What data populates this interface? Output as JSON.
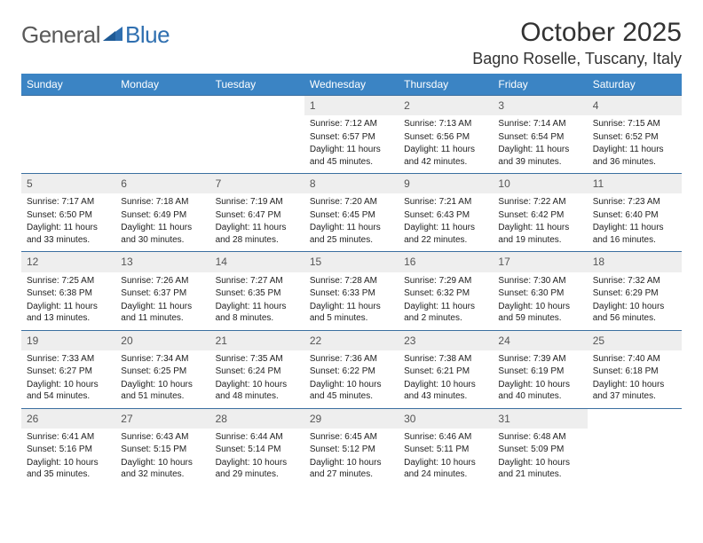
{
  "logo": {
    "textLeft": "General",
    "textRight": "Blue"
  },
  "title": "October 2025",
  "location": "Bagno Roselle, Tuscany, Italy",
  "colors": {
    "headerBg": "#3b84c4",
    "headerText": "#ffffff",
    "dayNumBg": "#eeeeee",
    "rowBorder": "#3b6fa0",
    "logoBlue": "#2f6fb0",
    "logoGray": "#5a5a5a"
  },
  "weekdays": [
    "Sunday",
    "Monday",
    "Tuesday",
    "Wednesday",
    "Thursday",
    "Friday",
    "Saturday"
  ],
  "weeks": [
    [
      {
        "n": "",
        "sr": "",
        "ss": "",
        "dl": ""
      },
      {
        "n": "",
        "sr": "",
        "ss": "",
        "dl": ""
      },
      {
        "n": "",
        "sr": "",
        "ss": "",
        "dl": ""
      },
      {
        "n": "1",
        "sr": "Sunrise: 7:12 AM",
        "ss": "Sunset: 6:57 PM",
        "dl": "Daylight: 11 hours and 45 minutes."
      },
      {
        "n": "2",
        "sr": "Sunrise: 7:13 AM",
        "ss": "Sunset: 6:56 PM",
        "dl": "Daylight: 11 hours and 42 minutes."
      },
      {
        "n": "3",
        "sr": "Sunrise: 7:14 AM",
        "ss": "Sunset: 6:54 PM",
        "dl": "Daylight: 11 hours and 39 minutes."
      },
      {
        "n": "4",
        "sr": "Sunrise: 7:15 AM",
        "ss": "Sunset: 6:52 PM",
        "dl": "Daylight: 11 hours and 36 minutes."
      }
    ],
    [
      {
        "n": "5",
        "sr": "Sunrise: 7:17 AM",
        "ss": "Sunset: 6:50 PM",
        "dl": "Daylight: 11 hours and 33 minutes."
      },
      {
        "n": "6",
        "sr": "Sunrise: 7:18 AM",
        "ss": "Sunset: 6:49 PM",
        "dl": "Daylight: 11 hours and 30 minutes."
      },
      {
        "n": "7",
        "sr": "Sunrise: 7:19 AM",
        "ss": "Sunset: 6:47 PM",
        "dl": "Daylight: 11 hours and 28 minutes."
      },
      {
        "n": "8",
        "sr": "Sunrise: 7:20 AM",
        "ss": "Sunset: 6:45 PM",
        "dl": "Daylight: 11 hours and 25 minutes."
      },
      {
        "n": "9",
        "sr": "Sunrise: 7:21 AM",
        "ss": "Sunset: 6:43 PM",
        "dl": "Daylight: 11 hours and 22 minutes."
      },
      {
        "n": "10",
        "sr": "Sunrise: 7:22 AM",
        "ss": "Sunset: 6:42 PM",
        "dl": "Daylight: 11 hours and 19 minutes."
      },
      {
        "n": "11",
        "sr": "Sunrise: 7:23 AM",
        "ss": "Sunset: 6:40 PM",
        "dl": "Daylight: 11 hours and 16 minutes."
      }
    ],
    [
      {
        "n": "12",
        "sr": "Sunrise: 7:25 AM",
        "ss": "Sunset: 6:38 PM",
        "dl": "Daylight: 11 hours and 13 minutes."
      },
      {
        "n": "13",
        "sr": "Sunrise: 7:26 AM",
        "ss": "Sunset: 6:37 PM",
        "dl": "Daylight: 11 hours and 11 minutes."
      },
      {
        "n": "14",
        "sr": "Sunrise: 7:27 AM",
        "ss": "Sunset: 6:35 PM",
        "dl": "Daylight: 11 hours and 8 minutes."
      },
      {
        "n": "15",
        "sr": "Sunrise: 7:28 AM",
        "ss": "Sunset: 6:33 PM",
        "dl": "Daylight: 11 hours and 5 minutes."
      },
      {
        "n": "16",
        "sr": "Sunrise: 7:29 AM",
        "ss": "Sunset: 6:32 PM",
        "dl": "Daylight: 11 hours and 2 minutes."
      },
      {
        "n": "17",
        "sr": "Sunrise: 7:30 AM",
        "ss": "Sunset: 6:30 PM",
        "dl": "Daylight: 10 hours and 59 minutes."
      },
      {
        "n": "18",
        "sr": "Sunrise: 7:32 AM",
        "ss": "Sunset: 6:29 PM",
        "dl": "Daylight: 10 hours and 56 minutes."
      }
    ],
    [
      {
        "n": "19",
        "sr": "Sunrise: 7:33 AM",
        "ss": "Sunset: 6:27 PM",
        "dl": "Daylight: 10 hours and 54 minutes."
      },
      {
        "n": "20",
        "sr": "Sunrise: 7:34 AM",
        "ss": "Sunset: 6:25 PM",
        "dl": "Daylight: 10 hours and 51 minutes."
      },
      {
        "n": "21",
        "sr": "Sunrise: 7:35 AM",
        "ss": "Sunset: 6:24 PM",
        "dl": "Daylight: 10 hours and 48 minutes."
      },
      {
        "n": "22",
        "sr": "Sunrise: 7:36 AM",
        "ss": "Sunset: 6:22 PM",
        "dl": "Daylight: 10 hours and 45 minutes."
      },
      {
        "n": "23",
        "sr": "Sunrise: 7:38 AM",
        "ss": "Sunset: 6:21 PM",
        "dl": "Daylight: 10 hours and 43 minutes."
      },
      {
        "n": "24",
        "sr": "Sunrise: 7:39 AM",
        "ss": "Sunset: 6:19 PM",
        "dl": "Daylight: 10 hours and 40 minutes."
      },
      {
        "n": "25",
        "sr": "Sunrise: 7:40 AM",
        "ss": "Sunset: 6:18 PM",
        "dl": "Daylight: 10 hours and 37 minutes."
      }
    ],
    [
      {
        "n": "26",
        "sr": "Sunrise: 6:41 AM",
        "ss": "Sunset: 5:16 PM",
        "dl": "Daylight: 10 hours and 35 minutes."
      },
      {
        "n": "27",
        "sr": "Sunrise: 6:43 AM",
        "ss": "Sunset: 5:15 PM",
        "dl": "Daylight: 10 hours and 32 minutes."
      },
      {
        "n": "28",
        "sr": "Sunrise: 6:44 AM",
        "ss": "Sunset: 5:14 PM",
        "dl": "Daylight: 10 hours and 29 minutes."
      },
      {
        "n": "29",
        "sr": "Sunrise: 6:45 AM",
        "ss": "Sunset: 5:12 PM",
        "dl": "Daylight: 10 hours and 27 minutes."
      },
      {
        "n": "30",
        "sr": "Sunrise: 6:46 AM",
        "ss": "Sunset: 5:11 PM",
        "dl": "Daylight: 10 hours and 24 minutes."
      },
      {
        "n": "31",
        "sr": "Sunrise: 6:48 AM",
        "ss": "Sunset: 5:09 PM",
        "dl": "Daylight: 10 hours and 21 minutes."
      },
      {
        "n": "",
        "sr": "",
        "ss": "",
        "dl": ""
      }
    ]
  ]
}
